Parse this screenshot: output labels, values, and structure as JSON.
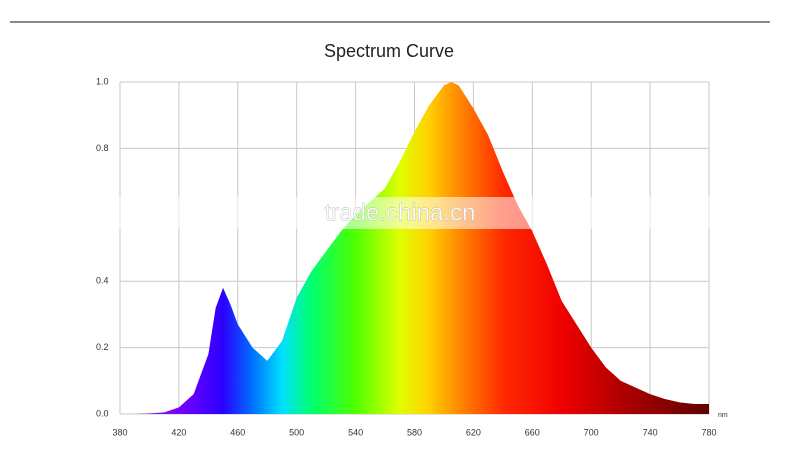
{
  "chart_data": {
    "type": "area",
    "title": "Spectrum Curve",
    "x_unit": "nm",
    "watermark": "trade.china.cn",
    "x": [
      380,
      390,
      400,
      410,
      420,
      430,
      440,
      445,
      450,
      455,
      460,
      470,
      480,
      490,
      500,
      510,
      520,
      530,
      540,
      550,
      560,
      570,
      580,
      590,
      600,
      605,
      610,
      620,
      630,
      640,
      650,
      660,
      670,
      680,
      690,
      700,
      710,
      720,
      730,
      740,
      750,
      760,
      770,
      780
    ],
    "values": [
      0,
      0,
      0.002,
      0.005,
      0.02,
      0.06,
      0.18,
      0.32,
      0.38,
      0.33,
      0.27,
      0.2,
      0.16,
      0.22,
      0.35,
      0.43,
      0.49,
      0.55,
      0.6,
      0.64,
      0.68,
      0.76,
      0.85,
      0.93,
      0.99,
      1.0,
      0.99,
      0.92,
      0.84,
      0.73,
      0.63,
      0.55,
      0.45,
      0.34,
      0.27,
      0.2,
      0.14,
      0.1,
      0.08,
      0.06,
      0.045,
      0.035,
      0.03,
      0.03
    ],
    "xlim": [
      380,
      780
    ],
    "xticks": [
      380,
      420,
      460,
      500,
      540,
      580,
      620,
      660,
      700,
      740,
      780
    ],
    "ylim": [
      0,
      1
    ],
    "yticks": [
      {
        "value": 0,
        "label": "0.0"
      },
      0.2,
      0.4,
      0.8,
      {
        "value": 1,
        "label": "1.0"
      }
    ],
    "grid": true
  }
}
